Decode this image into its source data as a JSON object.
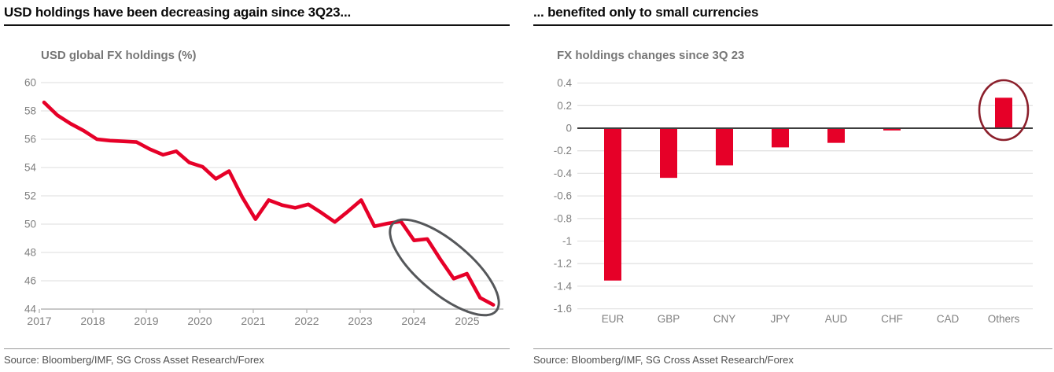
{
  "panels": {
    "left": {
      "title": "USD holdings have been decreasing again since 3Q23...",
      "chart_title": "USD global FX holdings (%)",
      "source": "Source: Bloomberg/IMF, SG Cross Asset Research/Forex"
    },
    "right": {
      "title": "... benefited only to small currencies",
      "chart_title": "FX holdings changes since 3Q 23",
      "source": "Source: Bloomberg/IMF, SG Cross Asset Research/Forex"
    }
  },
  "colors": {
    "series_red": "#e60028",
    "annotation_gray": "#55575a",
    "annotation_maroon": "#8b1f2b",
    "gridline": "#e3e3e3",
    "axis_line": "#b5b5b5",
    "zero_line": "#3d3d3d",
    "tick_label": "#7f7f7f"
  },
  "chart_data": [
    {
      "type": "line",
      "title": "USD global FX holdings (%)",
      "x_start": 2017,
      "x_step": 0.25,
      "x_unit": "quarterly",
      "x_tick_labels": [
        "2017",
        "2018",
        "2019",
        "2020",
        "2021",
        "2022",
        "2023",
        "2024",
        "2025"
      ],
      "y_ticks": [
        60,
        58,
        56,
        54,
        52,
        50,
        48,
        46,
        44
      ],
      "ylim": [
        44,
        60
      ],
      "grid": true,
      "legend": "none",
      "values": [
        58.6,
        57.7,
        57.1,
        56.6,
        56.0,
        55.9,
        55.85,
        55.8,
        55.3,
        54.9,
        55.15,
        54.35,
        54.05,
        53.2,
        53.75,
        51.9,
        50.35,
        51.7,
        51.35,
        51.15,
        51.4,
        50.8,
        50.15,
        50.9,
        51.7,
        49.85,
        50.05,
        50.2,
        48.85,
        48.95,
        47.5,
        46.15,
        46.5,
        44.8,
        44.3
      ],
      "annotation": {
        "shape": "ellipse",
        "meaning": "highlights decline from 3Q23 to mid-2025",
        "color": "#55575a"
      }
    },
    {
      "type": "bar",
      "title": "FX holdings changes since 3Q 23",
      "categories": [
        "EUR",
        "GBP",
        "CNY",
        "JPY",
        "AUD",
        "CHF",
        "CAD",
        "Others"
      ],
      "values": [
        -1.35,
        -0.44,
        -0.33,
        -0.17,
        -0.13,
        -0.02,
        0.0,
        0.27
      ],
      "y_tick_labels": [
        "0.4",
        "0.2",
        "0",
        "-0.2",
        "-0.4",
        "-0.6",
        "-0.8",
        "-1",
        "-1.2",
        "-1.4",
        "-1.6"
      ],
      "ylim": [
        -1.6,
        0.4
      ],
      "grid": true,
      "legend": "none",
      "annotation": {
        "shape": "circle",
        "target": "Others",
        "meaning": "circles the only positive change",
        "color": "#8b1f2b"
      }
    }
  ]
}
